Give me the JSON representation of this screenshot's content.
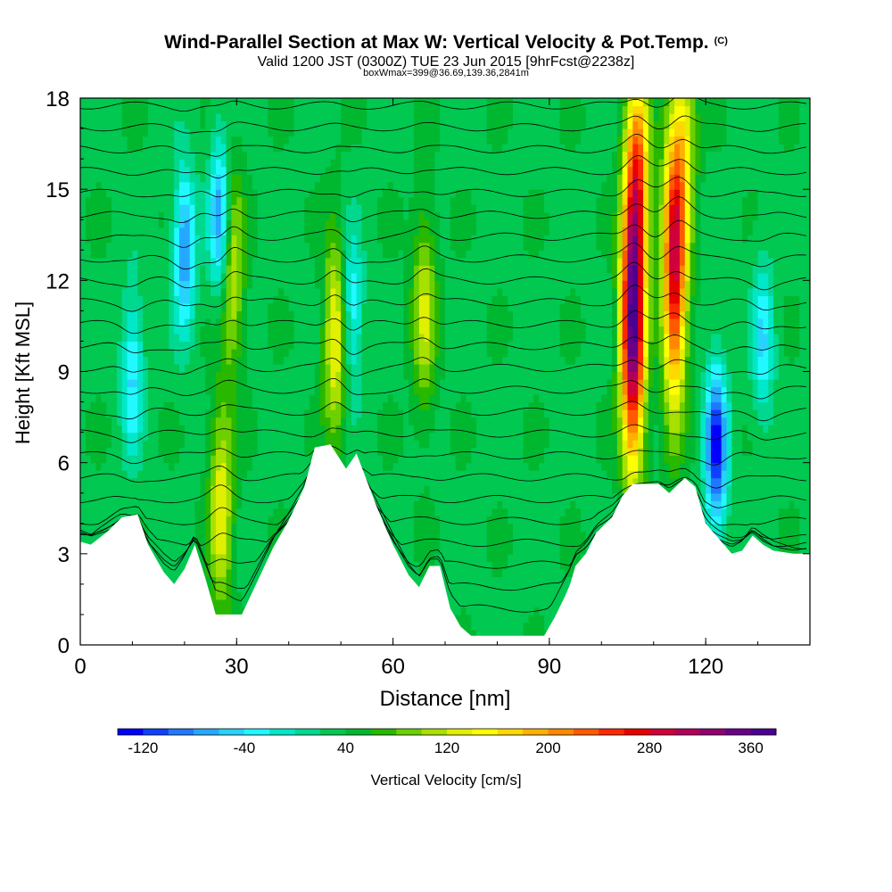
{
  "chart_data": {
    "type": "heatmap",
    "title": "Wind-Parallel Section at Max W: Vertical Velocity & Pot.Temp.",
    "copyright_mark": "(C)",
    "subtitle": "Valid 1200 JST (0300Z) TUE 23 Jun 2015 [9hrFcst@2238z]",
    "subtitle2": "boxWmax=399@36.69,139.36,2841m",
    "xlabel": "Distance [nm]",
    "ylabel": "Height [Kft MSL]",
    "xlim": [
      0,
      140
    ],
    "ylim": [
      0,
      18
    ],
    "xticks": [
      0,
      30,
      60,
      90,
      120
    ],
    "yticks": [
      0,
      3,
      6,
      9,
      12,
      15,
      18
    ],
    "colorbar": {
      "label": "Vertical Velocity [cm/s]",
      "ticks": [
        -120,
        -40,
        40,
        120,
        200,
        280,
        360
      ],
      "min": -140,
      "max": 380,
      "step": 20,
      "colors": [
        "#0000ff",
        "#1040ff",
        "#1f78ff",
        "#25a8ff",
        "#28d2ff",
        "#21f8ff",
        "#00e8c8",
        "#00d890",
        "#00c850",
        "#00b830",
        "#28b800",
        "#6cd000",
        "#a8e000",
        "#e0f000",
        "#ffff00",
        "#ffd800",
        "#ffb000",
        "#ff8800",
        "#ff5a00",
        "#ff2800",
        "#e80000",
        "#d0003a",
        "#b0005a",
        "#8f0070",
        "#6a0088",
        "#4b0090"
      ]
    },
    "terrain_ft": [
      [
        0,
        3400
      ],
      [
        2,
        3300
      ],
      [
        5,
        3700
      ],
      [
        8,
        4200
      ],
      [
        11,
        4300
      ],
      [
        13,
        3300
      ],
      [
        16,
        2400
      ],
      [
        18,
        2000
      ],
      [
        20,
        2500
      ],
      [
        22,
        3300
      ],
      [
        24,
        2200
      ],
      [
        26,
        1000
      ],
      [
        31,
        1000
      ],
      [
        34,
        2100
      ],
      [
        37,
        3200
      ],
      [
        40,
        4100
      ],
      [
        43,
        5200
      ],
      [
        45,
        6500
      ],
      [
        48,
        6600
      ],
      [
        51,
        5800
      ],
      [
        53,
        6300
      ],
      [
        55,
        5400
      ],
      [
        57,
        4500
      ],
      [
        60,
        3300
      ],
      [
        63,
        2300
      ],
      [
        65,
        1900
      ],
      [
        67,
        2600
      ],
      [
        69,
        2600
      ],
      [
        71,
        1200
      ],
      [
        73,
        600
      ],
      [
        75,
        300
      ],
      [
        89,
        300
      ],
      [
        91,
        900
      ],
      [
        93,
        1600
      ],
      [
        94,
        2000
      ],
      [
        95,
        2600
      ],
      [
        97,
        3000
      ],
      [
        99,
        3700
      ],
      [
        102,
        4200
      ],
      [
        104,
        4900
      ],
      [
        106,
        5300
      ],
      [
        111,
        5300
      ],
      [
        113,
        5000
      ],
      [
        116,
        5500
      ],
      [
        118,
        5200
      ],
      [
        120,
        4000
      ],
      [
        122,
        3600
      ],
      [
        125,
        3000
      ],
      [
        127,
        3100
      ],
      [
        129,
        3600
      ],
      [
        131,
        3300
      ],
      [
        133,
        3100
      ],
      [
        137,
        3000
      ],
      [
        140,
        3000
      ]
    ],
    "updraft_cores": [
      {
        "x": 27,
        "y": 4.5,
        "w_cm_s": 140
      },
      {
        "x": 29,
        "y": 12.5,
        "w_cm_s": 140
      },
      {
        "x": 49,
        "y": 10.2,
        "w_cm_s": 150
      },
      {
        "x": 66,
        "y": 11,
        "w_cm_s": 120
      },
      {
        "x": 106,
        "y": 10.5,
        "w_cm_s": 360
      },
      {
        "x": 107,
        "y": 15.5,
        "w_cm_s": 200
      },
      {
        "x": 114,
        "y": 12.5,
        "w_cm_s": 290
      },
      {
        "x": 116,
        "y": 16.8,
        "w_cm_s": 120
      }
    ],
    "downdraft_cores": [
      {
        "x": 20,
        "y": 13,
        "w_cm_s": -80
      },
      {
        "x": 27,
        "y": 14,
        "w_cm_s": -95
      },
      {
        "x": 10,
        "y": 9,
        "w_cm_s": -45
      },
      {
        "x": 52,
        "y": 11,
        "w_cm_s": -45
      },
      {
        "x": 122,
        "y": 6.5,
        "w_cm_s": -130
      },
      {
        "x": 131,
        "y": 10,
        "w_cm_s": -40
      }
    ],
    "isentropes_count": 25
  }
}
